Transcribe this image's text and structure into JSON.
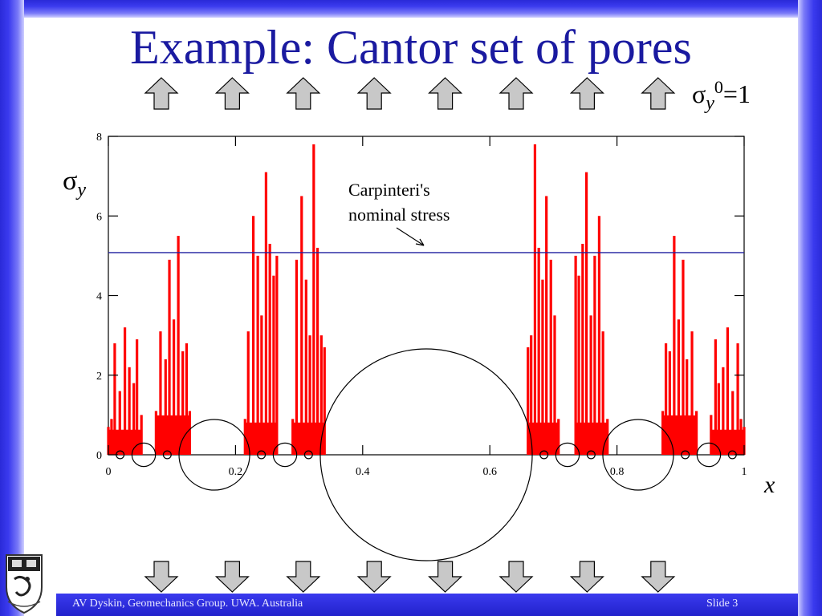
{
  "slide": {
    "title": "Example: Cantor set of pores",
    "stress_label_symbol": "σ",
    "stress_label_sub": "y",
    "stress_label_sup": "0",
    "stress_label_value": "=1",
    "footer_left": "AV Dyskin, Geomechanics Group. UWA. Australia",
    "footer_right": "Slide 3",
    "colors": {
      "title": "#1a1aa0",
      "frame": "#3333dd",
      "arrow_fill": "#c8c8c8"
    }
  },
  "chart_data": {
    "type": "line",
    "ylabel_symbol": "σ",
    "ylabel_sub": "y",
    "xlabel": "x",
    "xlim": [
      0,
      1
    ],
    "ylim": [
      0,
      8
    ],
    "x_ticks": [
      "0",
      "0.2",
      "0.4",
      "0.6",
      "0.8",
      "1"
    ],
    "y_ticks": [
      "0",
      "2",
      "4",
      "6",
      "8"
    ],
    "annotation_line1": "Carpinteri's",
    "annotation_line2": "nominal stress",
    "nominal_stress": {
      "value": 5.08,
      "color": "#2020a0"
    },
    "series_color": "#ff0000",
    "stress_peaks": [
      [
        0.0,
        0.7
      ],
      [
        0.005,
        0.9
      ],
      [
        0.01,
        2.8
      ],
      [
        0.018,
        1.6
      ],
      [
        0.026,
        3.2
      ],
      [
        0.033,
        2.2
      ],
      [
        0.04,
        1.8
      ],
      [
        0.045,
        2.9
      ],
      [
        0.052,
        1.0
      ],
      [
        0.075,
        1.1
      ],
      [
        0.082,
        3.1
      ],
      [
        0.09,
        2.4
      ],
      [
        0.096,
        4.9
      ],
      [
        0.103,
        3.4
      ],
      [
        0.11,
        5.5
      ],
      [
        0.117,
        2.6
      ],
      [
        0.123,
        2.8
      ],
      [
        0.128,
        1.1
      ],
      [
        0.215,
        0.9
      ],
      [
        0.22,
        3.1
      ],
      [
        0.228,
        6.0
      ],
      [
        0.235,
        5.0
      ],
      [
        0.241,
        3.5
      ],
      [
        0.248,
        7.1
      ],
      [
        0.254,
        5.3
      ],
      [
        0.26,
        4.5
      ],
      [
        0.265,
        5.0
      ],
      [
        0.29,
        0.9
      ],
      [
        0.296,
        4.9
      ],
      [
        0.304,
        6.5
      ],
      [
        0.311,
        4.4
      ],
      [
        0.317,
        3.0
      ],
      [
        0.323,
        7.8
      ],
      [
        0.329,
        5.2
      ],
      [
        0.335,
        3.0
      ],
      [
        0.34,
        2.7
      ],
      [
        0.66,
        2.7
      ],
      [
        0.665,
        3.0
      ],
      [
        0.671,
        7.8
      ],
      [
        0.677,
        5.2
      ],
      [
        0.683,
        4.4
      ],
      [
        0.689,
        6.5
      ],
      [
        0.696,
        4.9
      ],
      [
        0.702,
        3.5
      ],
      [
        0.708,
        0.9
      ],
      [
        0.735,
        5.0
      ],
      [
        0.74,
        4.5
      ],
      [
        0.746,
        5.3
      ],
      [
        0.752,
        7.1
      ],
      [
        0.759,
        3.5
      ],
      [
        0.765,
        5.0
      ],
      [
        0.772,
        6.0
      ],
      [
        0.778,
        3.1
      ],
      [
        0.785,
        0.9
      ],
      [
        0.872,
        1.1
      ],
      [
        0.877,
        2.8
      ],
      [
        0.883,
        2.6
      ],
      [
        0.89,
        5.5
      ],
      [
        0.897,
        3.4
      ],
      [
        0.904,
        4.9
      ],
      [
        0.91,
        2.4
      ],
      [
        0.918,
        3.1
      ],
      [
        0.925,
        1.1
      ],
      [
        0.948,
        1.0
      ],
      [
        0.955,
        2.9
      ],
      [
        0.96,
        1.8
      ],
      [
        0.967,
        2.2
      ],
      [
        0.974,
        3.2
      ],
      [
        0.982,
        1.6
      ],
      [
        0.99,
        2.8
      ],
      [
        0.995,
        0.9
      ],
      [
        1.0,
        0.7
      ]
    ],
    "pore_circles": [
      {
        "cx": 0.5,
        "r": 0.1667
      },
      {
        "cx": 0.1667,
        "r": 0.0556
      },
      {
        "cx": 0.8333,
        "r": 0.0556
      },
      {
        "cx": 0.0556,
        "r": 0.0185
      },
      {
        "cx": 0.2778,
        "r": 0.0185
      },
      {
        "cx": 0.7222,
        "r": 0.0185
      },
      {
        "cx": 0.9444,
        "r": 0.0185
      },
      {
        "cx": 0.0185,
        "r": 0.0062
      },
      {
        "cx": 0.0926,
        "r": 0.0062
      },
      {
        "cx": 0.2407,
        "r": 0.0062
      },
      {
        "cx": 0.3148,
        "r": 0.0062
      },
      {
        "cx": 0.6852,
        "r": 0.0062
      },
      {
        "cx": 0.7593,
        "r": 0.0062
      },
      {
        "cx": 0.9074,
        "r": 0.0062
      },
      {
        "cx": 0.9815,
        "r": 0.0062
      }
    ],
    "arrows_count": 8
  }
}
